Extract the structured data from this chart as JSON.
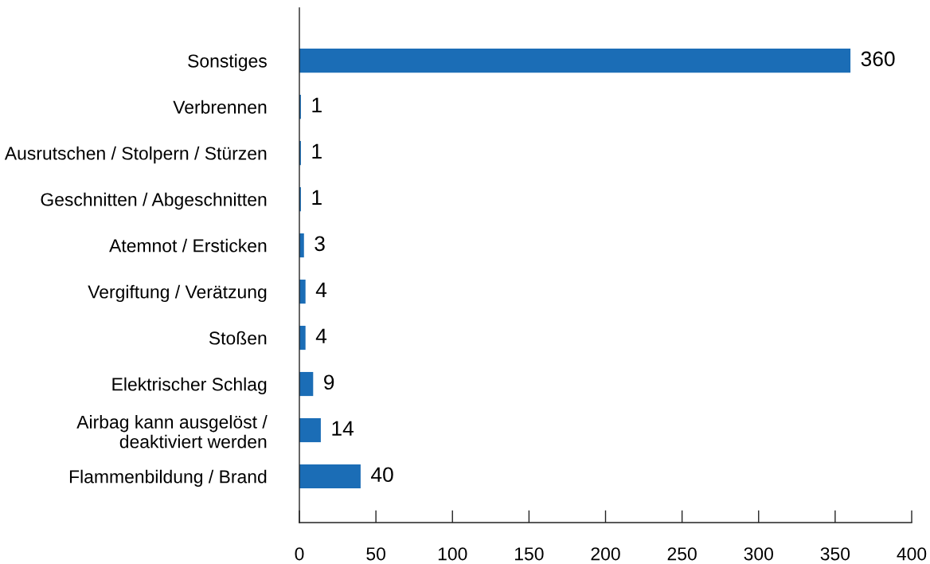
{
  "chart_data": {
    "type": "bar",
    "orientation": "horizontal",
    "categories": [
      "Sonstiges",
      "Verbrennen",
      "Ausrutschen / Stolpern / Stürzen",
      "Geschnitten / Abgeschnitten",
      "Atemnot / Ersticken",
      "Vergiftung / Verätzung",
      "Stoßen",
      "Elektrischer Schlag",
      "Airbag kann ausgelöst /\ndeaktiviert werden",
      "Flammenbildung / Brand"
    ],
    "values": [
      360,
      1,
      1,
      1,
      3,
      4,
      4,
      9,
      14,
      40
    ],
    "color": "#1b6db6",
    "xlim": [
      0,
      400
    ],
    "xticks": [
      0,
      50,
      100,
      150,
      200,
      250,
      300,
      350,
      400
    ],
    "data_labels": true,
    "grid": false
  }
}
